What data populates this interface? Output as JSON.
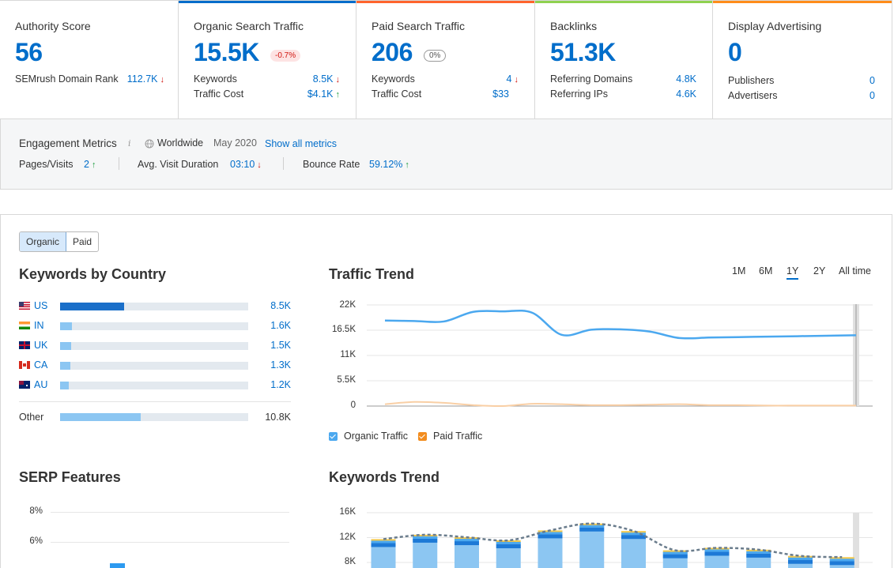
{
  "cards": {
    "authority": {
      "title": "Authority Score",
      "value": "56",
      "rank_label": "SEMrush Domain Rank",
      "rank_value": "112.7K"
    },
    "organic": {
      "title": "Organic Search Traffic",
      "value": "15.5K",
      "change": "-0.7%",
      "keywords_label": "Keywords",
      "keywords_value": "8.5K",
      "cost_label": "Traffic Cost",
      "cost_value": "$4.1K"
    },
    "paid": {
      "title": "Paid Search Traffic",
      "value": "206",
      "change": "0%",
      "keywords_label": "Keywords",
      "keywords_value": "4",
      "cost_label": "Traffic Cost",
      "cost_value": "$33"
    },
    "backlinks": {
      "title": "Backlinks",
      "value": "51.3K",
      "domains_label": "Referring Domains",
      "domains_value": "4.8K",
      "ips_label": "Referring IPs",
      "ips_value": "4.6K"
    },
    "display": {
      "title": "Display Advertising",
      "value": "0",
      "publishers_label": "Publishers",
      "publishers_value": "0",
      "advertisers_label": "Advertisers",
      "advertisers_value": "0"
    }
  },
  "colors": {
    "accent": "#006dca",
    "organic_bar": "#006dca",
    "paid_bar": "#ff642d",
    "backlinks_bar": "#8fd14f",
    "display_bar": "#ff8c1a",
    "up": "#1d9c3f",
    "down": "#d1150f"
  },
  "engagement": {
    "title": "Engagement Metrics",
    "info_icon": "i",
    "region": "Worldwide",
    "date": "May 2020",
    "show_all": "Show all metrics",
    "pages_label": "Pages/Visits",
    "pages_value": "2",
    "duration_label": "Avg. Visit Duration",
    "duration_value": "03:10",
    "bounce_label": "Bounce Rate",
    "bounce_value": "59.12%"
  },
  "tabs": {
    "organic": "Organic",
    "paid": "Paid"
  },
  "keywords_by_country": {
    "title": "Keywords by Country",
    "rows": [
      {
        "code": "US",
        "value": "8.5K",
        "share": 0.34
      },
      {
        "code": "IN",
        "value": "1.6K",
        "share": 0.065
      },
      {
        "code": "UK",
        "value": "1.5K",
        "share": 0.06
      },
      {
        "code": "CA",
        "value": "1.3K",
        "share": 0.055
      },
      {
        "code": "AU",
        "value": "1.2K",
        "share": 0.048
      }
    ],
    "other_label": "Other",
    "other_value": "10.8K",
    "other_share": 0.43
  },
  "traffic_trend": {
    "title": "Traffic Trend",
    "ranges": [
      "1M",
      "6M",
      "1Y",
      "2Y",
      "All time"
    ],
    "selected_range": "1Y",
    "legend_organic": "Organic Traffic",
    "legend_paid": "Paid Traffic"
  },
  "serp_features": {
    "title": "SERP Features",
    "y_ticks": [
      "8%",
      "6%"
    ]
  },
  "keywords_trend": {
    "title": "Keywords Trend"
  },
  "chart_data": [
    {
      "type": "line",
      "title": "Traffic Trend",
      "y_ticks": [
        "22K",
        "16.5K",
        "11K",
        "5.5K",
        "0"
      ],
      "ylim": [
        0,
        22000
      ],
      "series": [
        {
          "name": "Organic Traffic",
          "color": "#4ba8ef",
          "values": [
            18600,
            18500,
            18400,
            20500,
            20600,
            20300,
            15500,
            16600,
            16700,
            16200,
            14800,
            14900,
            15000,
            15100,
            15200,
            15300,
            15400
          ]
        },
        {
          "name": "Paid Traffic",
          "color": "#f9cfa5",
          "values": [
            400,
            900,
            700,
            200,
            0,
            500,
            400,
            200,
            200,
            300,
            400,
            200,
            200,
            100,
            100,
            100,
            100
          ]
        }
      ],
      "grid": true
    },
    {
      "type": "bar",
      "title": "Keywords Trend",
      "y_ticks": [
        "16K",
        "12K",
        "8K"
      ],
      "ylim": [
        0,
        16000
      ],
      "values": [
        11500,
        12200,
        11800,
        11300,
        12900,
        14000,
        12800,
        9700,
        10100,
        9800,
        8800,
        8600
      ],
      "grid": true
    }
  ]
}
